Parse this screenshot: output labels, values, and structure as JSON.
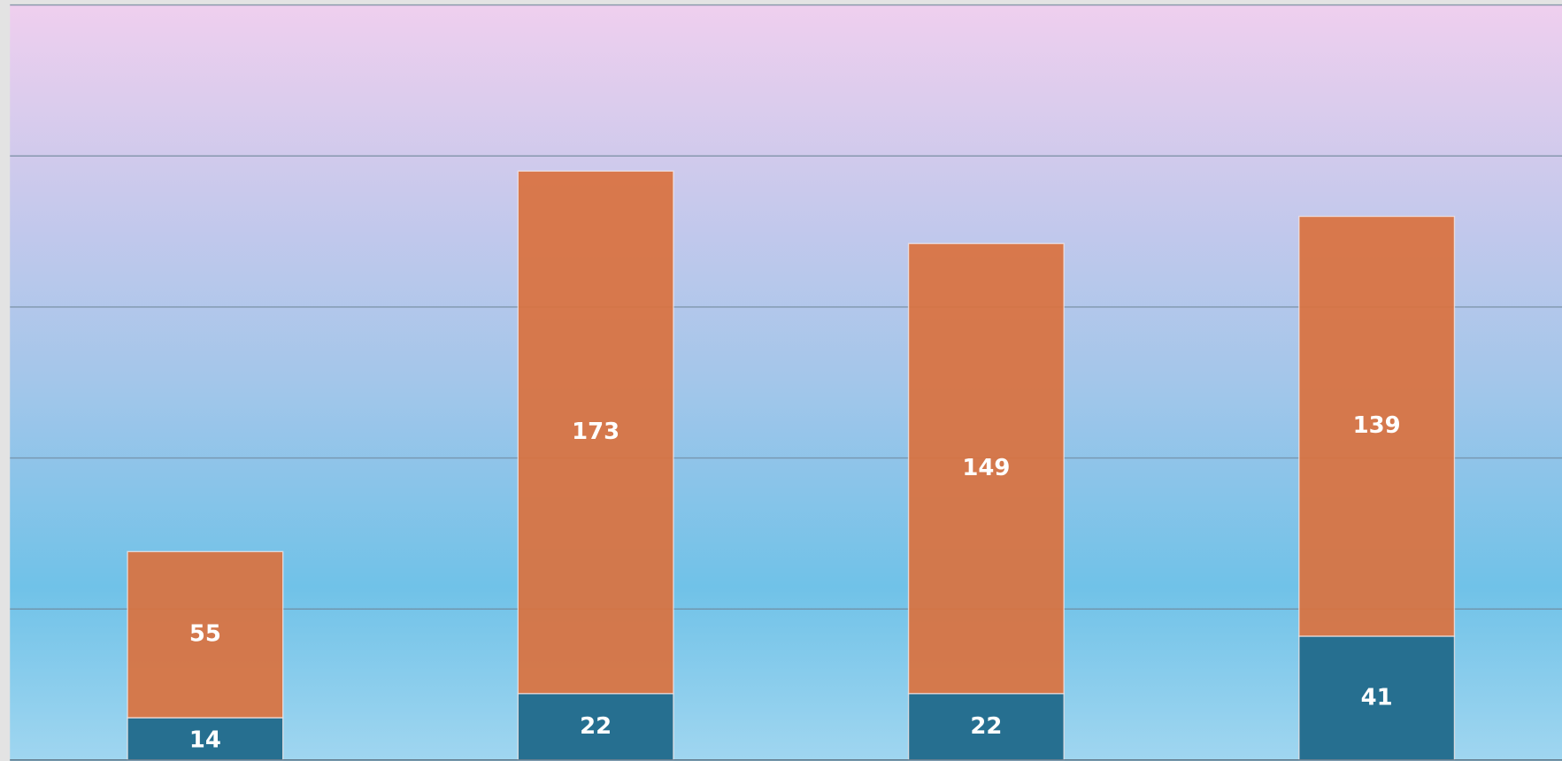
{
  "chart_data": {
    "type": "stacked_bar",
    "categories": [
      null,
      null,
      null,
      null
    ],
    "series": [
      {
        "color": "#266f90",
        "values": [
          14,
          22,
          22,
          41
        ]
      },
      {
        "color": "#d9723f",
        "values": [
          55,
          173,
          149,
          139
        ]
      }
    ],
    "ylim": [
      0,
      250
    ],
    "yticks": [
      0,
      50,
      100,
      150,
      200,
      250
    ],
    "grid": true
  }
}
